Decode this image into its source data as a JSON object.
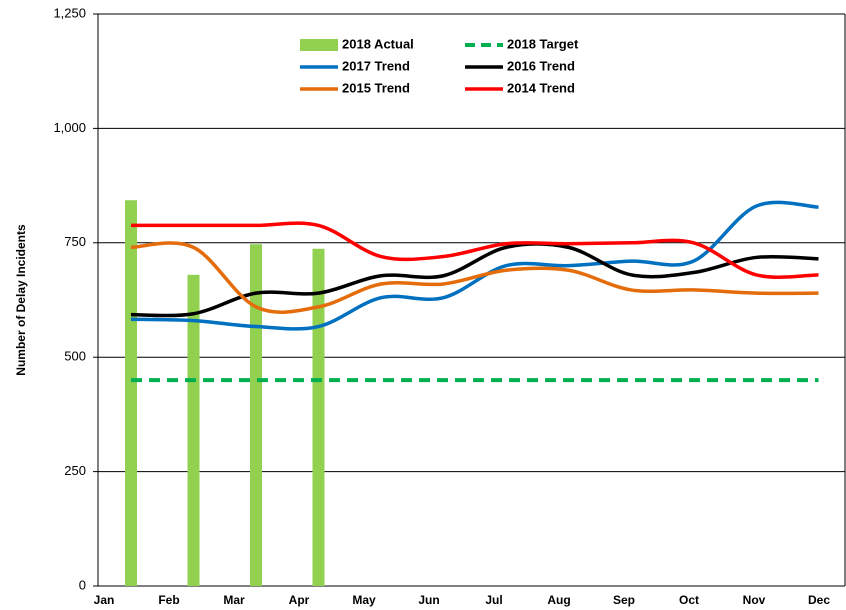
{
  "chart_data": {
    "type": "combo",
    "y_label": "Number of Delay Incidents",
    "categories": [
      "Jan",
      "Feb",
      "Mar",
      "Apr",
      "May",
      "Jun",
      "Jul",
      "Aug",
      "Sep",
      "Oct",
      "Nov",
      "Dec"
    ],
    "ylim": [
      0,
      1250
    ],
    "yticks": [
      0,
      250,
      500,
      750,
      {
        "value": 1000,
        "label": "1,000"
      },
      {
        "value": 1250,
        "label": "1,250"
      }
    ],
    "grid": true,
    "series": [
      {
        "name": "2018 Actual",
        "kind": "bar",
        "color": "#92d050",
        "values": [
          843,
          680,
          747,
          737,
          null,
          null,
          null,
          null,
          null,
          null,
          null,
          null
        ]
      },
      {
        "name": "2018 Target",
        "kind": "dashed",
        "color": "#00b050",
        "values": [
          450,
          450,
          450,
          450,
          450,
          450,
          450,
          450,
          450,
          450,
          450,
          450
        ]
      },
      {
        "name": "2017 Trend",
        "kind": "line",
        "color": "#0070c0",
        "values": [
          583,
          580,
          567,
          567,
          630,
          630,
          700,
          700,
          710,
          710,
          830,
          828
        ]
      },
      {
        "name": "2016 Trend",
        "kind": "line",
        "color": "#000000",
        "values": [
          593,
          595,
          640,
          640,
          678,
          678,
          740,
          740,
          680,
          685,
          718,
          715
        ]
      },
      {
        "name": "2015 Trend",
        "kind": "line",
        "color": "#e46c0a",
        "values": [
          740,
          740,
          610,
          610,
          660,
          660,
          690,
          690,
          647,
          647,
          640,
          640
        ]
      },
      {
        "name": "2014 Trend",
        "kind": "line",
        "color": "#ff0000",
        "values": [
          788,
          788,
          788,
          788,
          720,
          720,
          748,
          748,
          750,
          750,
          680,
          680
        ]
      }
    ]
  }
}
